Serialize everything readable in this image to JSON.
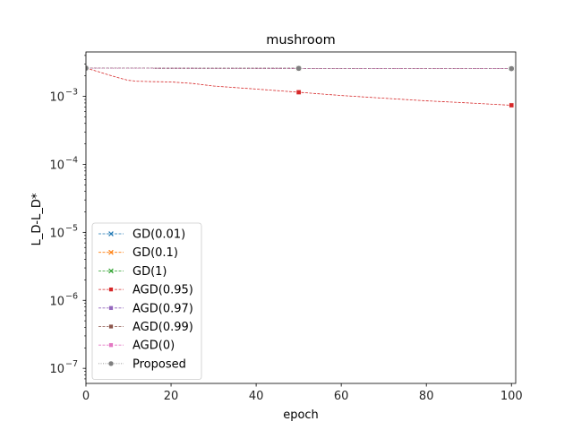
{
  "chart_data": {
    "type": "line",
    "title": "mushroom",
    "xlabel": "epoch",
    "ylabel": "L_D-L_D*",
    "yscale": "log",
    "xlim": [
      0,
      101
    ],
    "ylim": [
      6e-08,
      0.0045
    ],
    "xticks": [
      0,
      20,
      40,
      60,
      80,
      100
    ],
    "xtick_labels": [
      "0",
      "20",
      "40",
      "60",
      "80",
      "100"
    ],
    "yticks": [
      1e-07,
      1e-06,
      1e-05,
      0.0001,
      0.001
    ],
    "ytick_labels": [
      "10",
      "10",
      "10",
      "10",
      "10"
    ],
    "ytick_exponents": [
      "−7",
      "−6",
      "−5",
      "−4",
      "−3"
    ],
    "legend_position": "lower-left",
    "grid": false,
    "series": [
      {
        "name": "GD(0.01)",
        "color": "#1f77b4",
        "marker": "x",
        "dash": "3,1.5",
        "x": [
          0,
          50,
          100
        ],
        "y": [
          0.0026,
          0.00258,
          0.00256
        ]
      },
      {
        "name": "GD(0.1)",
        "color": "#ff7f0e",
        "marker": "x",
        "dash": "3,1.5",
        "x": [
          0,
          50,
          100
        ],
        "y": [
          0.0026,
          0.00258,
          0.00256
        ]
      },
      {
        "name": "GD(1)",
        "color": "#2ca02c",
        "marker": "x",
        "dash": "3,1.5",
        "x": [
          0,
          50,
          100
        ],
        "y": [
          0.0026,
          0.00258,
          0.00256
        ]
      },
      {
        "name": "AGD(0.95)",
        "color": "#d62728",
        "marker": "square",
        "dash": "3,1.5",
        "x": [
          0,
          2,
          5,
          8,
          10,
          12,
          15,
          20,
          25,
          30,
          40,
          50,
          60,
          70,
          80,
          90,
          100
        ],
        "y": [
          0.0026,
          0.0024,
          0.0021,
          0.00185,
          0.00172,
          0.00167,
          0.00165,
          0.00163,
          0.00155,
          0.00142,
          0.00128,
          0.00115,
          0.00103,
          0.00094,
          0.00086,
          0.0008,
          0.00074
        ]
      },
      {
        "name": "AGD(0.97)",
        "color": "#9467bd",
        "marker": "square",
        "dash": "3,1.5",
        "x": [
          0,
          50,
          100
        ],
        "y": [
          0.0026,
          0.00258,
          0.00256
        ]
      },
      {
        "name": "AGD(0.99)",
        "color": "#8c564b",
        "marker": "square",
        "dash": "3,1.5",
        "x": [
          0,
          50,
          100
        ],
        "y": [
          0.0026,
          0.00258,
          0.00256
        ]
      },
      {
        "name": "AGD(0)",
        "color": "#e377c2",
        "marker": "square",
        "dash": "3,1.5",
        "x": [
          0,
          50,
          100
        ],
        "y": [
          0.0026,
          0.00258,
          0.00256
        ]
      },
      {
        "name": "Proposed",
        "color": "#7f7f7f",
        "marker": "circle",
        "dash": "1,1.5",
        "x": [
          0,
          50,
          100
        ],
        "y": [
          0.0026,
          0.00258,
          0.00256
        ]
      }
    ]
  }
}
